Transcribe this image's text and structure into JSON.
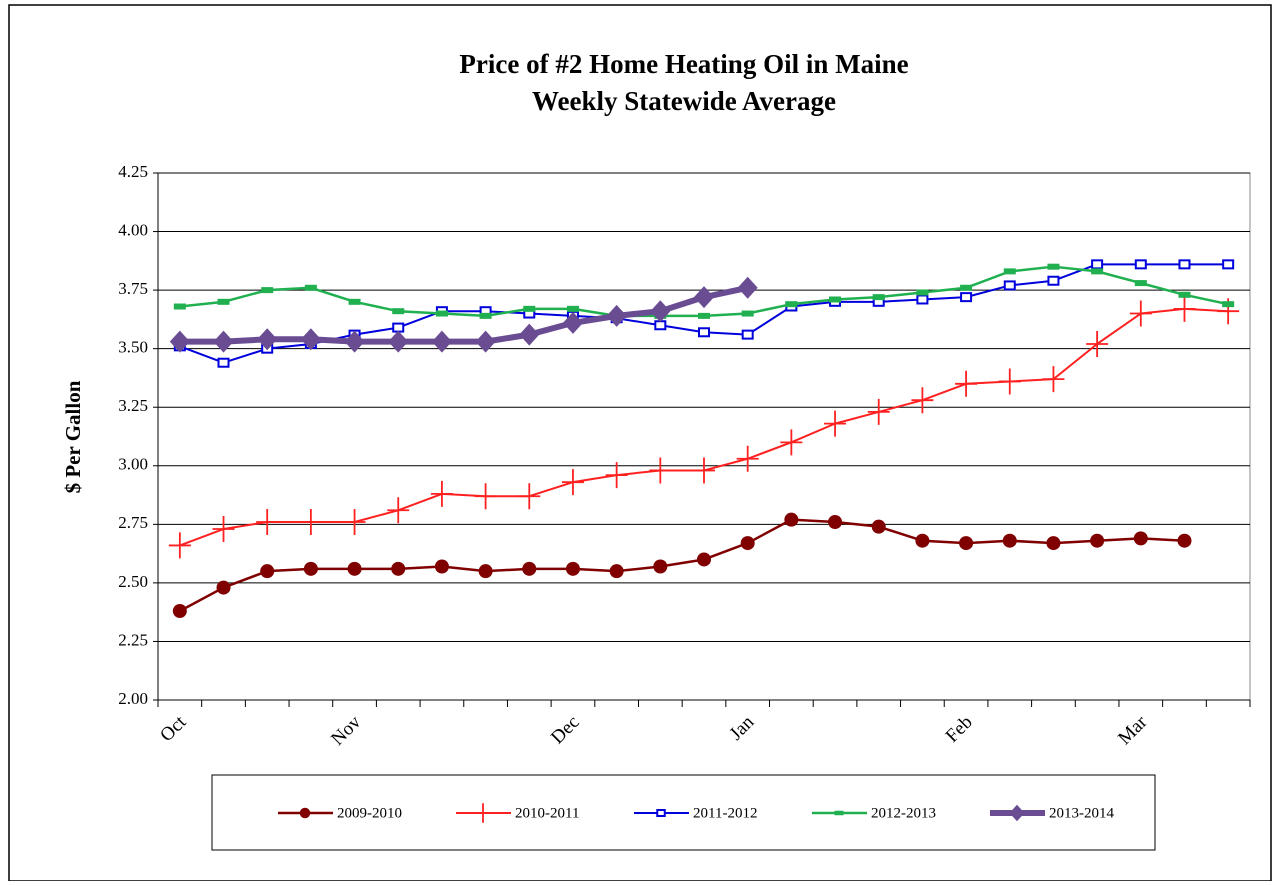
{
  "chart_data": {
    "type": "line",
    "title": "Price of #2 Home Heating Oil in Maine",
    "subtitle": "Weekly Statewide Average",
    "y_label": "$ Per Gallon",
    "categories": [
      "Oct",
      null,
      null,
      null,
      "Nov",
      null,
      null,
      null,
      null,
      "Dec",
      null,
      null,
      null,
      "Jan",
      null,
      null,
      null,
      null,
      "Feb",
      null,
      null,
      null,
      "Mar",
      null,
      null
    ],
    "ylim": [
      2.0,
      4.25
    ],
    "yticks": [
      {
        "value": 2.0,
        "label": "2.00"
      },
      {
        "value": 2.25,
        "label": "2.25"
      },
      {
        "value": 2.5,
        "label": "2.50"
      },
      {
        "value": 2.75,
        "label": "2.75"
      },
      {
        "value": 3.0,
        "label": "3.00"
      },
      {
        "value": 3.25,
        "label": "3.25"
      },
      {
        "value": 3.5,
        "label": "3.50"
      },
      {
        "value": 3.75,
        "label": "3.75"
      },
      {
        "value": 4.0,
        "label": "4.00"
      },
      {
        "value": 4.25,
        "label": "4.25"
      }
    ],
    "grid": true,
    "legend": "bottom",
    "series": [
      {
        "name": "2009-2010",
        "color": "#800000",
        "marker": "circle",
        "values": [
          2.38,
          2.48,
          2.55,
          2.56,
          2.56,
          2.56,
          2.57,
          2.55,
          2.56,
          2.56,
          2.55,
          2.57,
          2.6,
          2.67,
          2.77,
          2.76,
          2.74,
          2.68,
          2.67,
          2.68,
          2.67,
          2.68,
          2.69,
          2.68,
          null
        ]
      },
      {
        "name": "2010-2011",
        "color": "#ff2020",
        "marker": "plus",
        "values": [
          2.66,
          2.73,
          2.76,
          2.76,
          2.76,
          2.81,
          2.88,
          2.87,
          2.87,
          2.93,
          2.96,
          2.98,
          2.98,
          3.03,
          3.1,
          3.18,
          3.23,
          3.28,
          3.35,
          3.36,
          3.37,
          3.52,
          3.65,
          3.67,
          3.66
        ]
      },
      {
        "name": "2011-2012",
        "color": "#0000dd",
        "marker": "open-square",
        "values": [
          3.51,
          3.44,
          3.5,
          3.52,
          3.56,
          3.59,
          3.66,
          3.66,
          3.65,
          3.64,
          3.63,
          3.6,
          3.57,
          3.56,
          3.68,
          3.7,
          3.7,
          3.71,
          3.72,
          3.77,
          3.79,
          3.86,
          3.86,
          3.86,
          3.86
        ]
      },
      {
        "name": "2012-2013",
        "color": "#20b050",
        "marker": "bar",
        "values": [
          3.68,
          3.7,
          3.75,
          3.76,
          3.7,
          3.66,
          3.65,
          3.64,
          3.67,
          3.67,
          3.64,
          3.64,
          3.64,
          3.65,
          3.69,
          3.71,
          3.72,
          3.74,
          3.76,
          3.83,
          3.85,
          3.83,
          3.78,
          3.73,
          3.69
        ]
      },
      {
        "name": "2013-2014",
        "color": "#6a4c93",
        "marker": "diamond",
        "values": [
          3.53,
          3.53,
          3.54,
          3.54,
          3.53,
          3.53,
          3.53,
          3.53,
          3.56,
          3.61,
          3.64,
          3.66,
          3.72,
          3.76,
          null,
          null,
          null,
          null,
          null,
          null,
          null,
          null,
          null,
          null,
          null
        ]
      }
    ]
  }
}
